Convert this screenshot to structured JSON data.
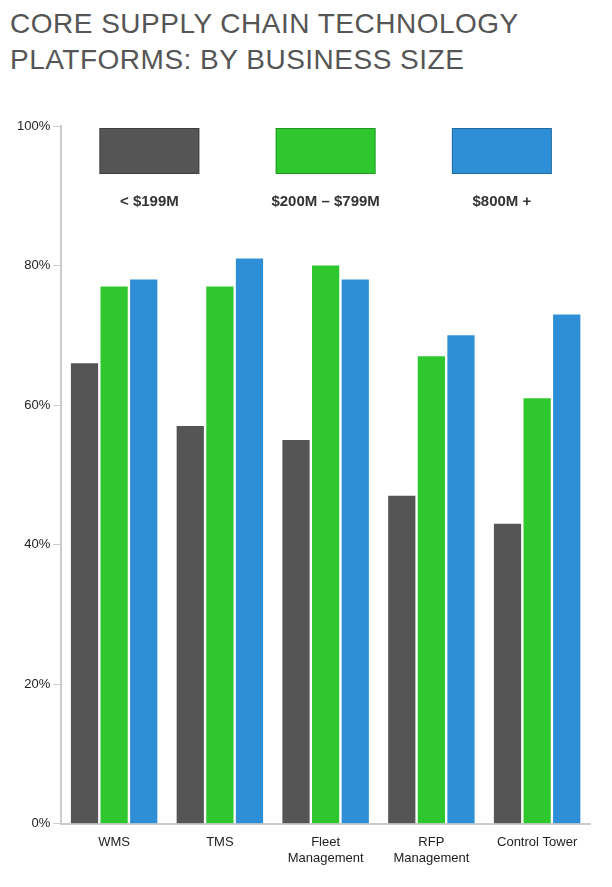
{
  "chart_data": {
    "type": "bar",
    "title": "CORE SUPPLY CHAIN TECHNOLOGY PLATFORMS: BY BUSINESS SIZE",
    "categories": [
      "WMS",
      "TMS",
      "Fleet Management",
      "RFP Management",
      "Control Tower"
    ],
    "series": [
      {
        "name": "< $199M",
        "color": "#555555",
        "values": [
          66,
          57,
          55,
          47,
          43
        ]
      },
      {
        "name": "$200M – $799M",
        "color": "#2ec82e",
        "values": [
          77,
          77,
          80,
          67,
          61
        ]
      },
      {
        "name": "$800M +",
        "color": "#2e8fd6",
        "values": [
          78,
          81,
          78,
          70,
          73
        ]
      }
    ],
    "ylim": [
      0,
      100
    ],
    "yticks": [
      {
        "value": 0,
        "label": "0%"
      },
      {
        "value": 20,
        "label": "20%"
      },
      {
        "value": 40,
        "label": "40%"
      },
      {
        "value": 60,
        "label": "60%"
      },
      {
        "value": 80,
        "label": "80%"
      },
      {
        "value": 100,
        "label": "100%"
      }
    ],
    "grid": false,
    "legend": "top"
  }
}
